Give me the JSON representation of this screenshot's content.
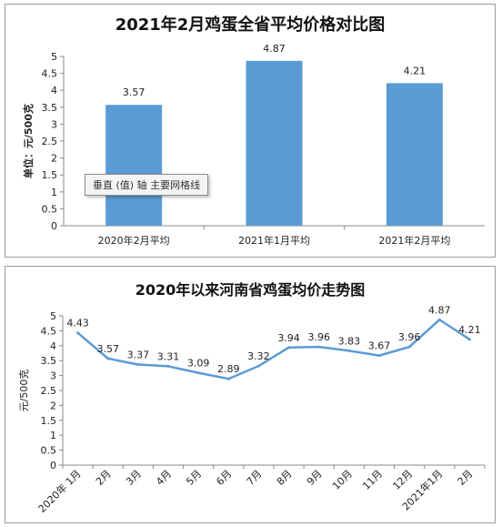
{
  "chart_data": [
    {
      "type": "bar",
      "title": "2021年2月鸡蛋全省平均价格对比图",
      "ylabel": "单位：元/500克",
      "ylim": [
        0,
        5
      ],
      "yticks": [
        "0",
        "0.5",
        "1",
        "1.5",
        "2",
        "2.5",
        "3",
        "3.5",
        "4",
        "4.5",
        "5"
      ],
      "categories": [
        "2020年2月平均",
        "2021年1月平均",
        "2021年2月平均"
      ],
      "values": [
        3.57,
        4.87,
        4.21
      ],
      "labels": [
        "3.57",
        "4.87",
        "4.21"
      ],
      "color": "#5b9bd5",
      "grid": false
    },
    {
      "type": "line",
      "title": "2020年以来河南省鸡蛋均价走势图",
      "ylabel": "元/500克",
      "ylim": [
        0,
        5
      ],
      "yticks": [
        "0",
        "0.5",
        "1",
        "1.5",
        "2",
        "2.5",
        "3",
        "3.5",
        "4",
        "4.5",
        "5"
      ],
      "categories": [
        "2020年 1月",
        "2月",
        "3月",
        "4月",
        "5月",
        "6月",
        "7月",
        "8月",
        "9月",
        "10月",
        "11月",
        "12月",
        "2021年1月",
        "2月"
      ],
      "values": [
        4.43,
        3.57,
        3.37,
        3.31,
        3.09,
        2.89,
        3.32,
        3.94,
        3.96,
        3.83,
        3.67,
        3.96,
        4.87,
        4.21
      ],
      "labels": [
        "4.43",
        "3.57",
        "3.37",
        "3.31",
        "3.09",
        "2.89",
        "3.32",
        "3.94",
        "3.96",
        "3.83",
        "3.67",
        "3.96",
        "4.87",
        "4.21"
      ],
      "color": "#5b9bd5",
      "grid": false
    }
  ],
  "tooltip": {
    "text": "垂直 (值) 轴 主要网格线"
  }
}
